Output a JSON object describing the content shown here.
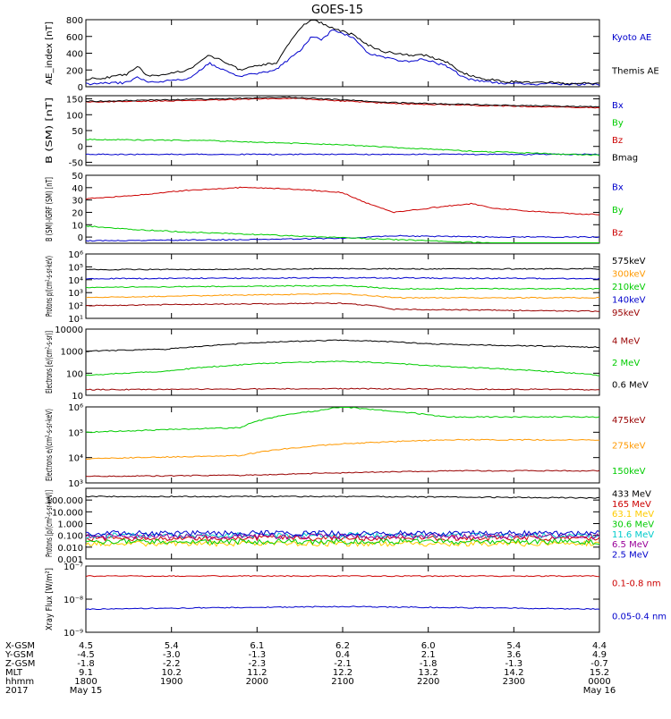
{
  "title": "GOES-15",
  "chart_data": [
    {
      "type": "line",
      "ylabel": "AE_index [nT]",
      "ylim": [
        0,
        800
      ],
      "y_ticks": [
        "0",
        "200",
        "400",
        "600",
        "800"
      ],
      "series": [
        {
          "name": "Kyoto AE",
          "color": "#0000cc",
          "x": [
            0,
            0.04,
            0.08,
            0.1,
            0.12,
            0.15,
            0.2,
            0.24,
            0.27,
            0.3,
            0.34,
            0.37,
            0.4,
            0.42,
            0.44,
            0.46,
            0.48,
            0.5,
            0.52,
            0.55,
            0.58,
            0.62,
            0.66,
            0.7,
            0.74,
            0.78,
            0.82,
            0.86,
            0.9,
            0.95,
            1.0
          ],
          "y": [
            30,
            40,
            50,
            120,
            50,
            60,
            100,
            280,
            200,
            120,
            170,
            200,
            350,
            450,
            600,
            560,
            680,
            640,
            580,
            400,
            350,
            300,
            330,
            250,
            100,
            60,
            40,
            30,
            40,
            30,
            30
          ]
        },
        {
          "name": "Themis AE",
          "color": "#000000",
          "x": [
            0,
            0.04,
            0.08,
            0.1,
            0.12,
            0.15,
            0.2,
            0.24,
            0.27,
            0.3,
            0.34,
            0.37,
            0.4,
            0.42,
            0.44,
            0.46,
            0.48,
            0.5,
            0.52,
            0.55,
            0.58,
            0.62,
            0.66,
            0.7,
            0.74,
            0.78,
            0.82,
            0.86,
            0.9,
            0.95,
            1.0
          ],
          "y": [
            90,
            110,
            150,
            250,
            130,
            140,
            200,
            380,
            300,
            200,
            260,
            280,
            560,
            720,
            800,
            760,
            700,
            660,
            620,
            500,
            420,
            380,
            380,
            300,
            150,
            90,
            60,
            50,
            50,
            40,
            40
          ]
        }
      ]
    },
    {
      "type": "line",
      "ylabel": "B (SM) [nT]",
      "ylim": [
        -60,
        160
      ],
      "y_ticks": [
        "-50",
        "0",
        "50",
        "100",
        "150"
      ],
      "series": [
        {
          "name": "Bx",
          "color": "#0000cc",
          "x": [
            0,
            0.5,
            1.0
          ],
          "y": [
            -25,
            -25,
            -25
          ]
        },
        {
          "name": "By",
          "color": "#00cc00",
          "x": [
            0,
            0.25,
            0.5,
            0.75,
            1.0
          ],
          "y": [
            22,
            18,
            5,
            -15,
            -28
          ]
        },
        {
          "name": "Bz",
          "color": "#cc0000",
          "x": [
            0,
            0.2,
            0.4,
            0.6,
            0.8,
            1.0
          ],
          "y": [
            140,
            145,
            152,
            135,
            128,
            122
          ]
        },
        {
          "name": "Bmag",
          "color": "#000000",
          "x": [
            0,
            0.2,
            0.4,
            0.6,
            0.8,
            1.0
          ],
          "y": [
            142,
            148,
            155,
            138,
            130,
            125
          ]
        }
      ]
    },
    {
      "type": "line",
      "ylabel": "B (SM)-IGRF (SM) [nT]",
      "ylim": [
        -5,
        50
      ],
      "y_ticks": [
        "0",
        "10",
        "20",
        "30",
        "40",
        "50"
      ],
      "series": [
        {
          "name": "Bx",
          "color": "#0000cc",
          "x": [
            0,
            0.3,
            0.5,
            0.6,
            0.8,
            1.0
          ],
          "y": [
            -3,
            -2,
            -1,
            1,
            0,
            0
          ]
        },
        {
          "name": "By",
          "color": "#00cc00",
          "x": [
            0,
            0.1,
            0.2,
            0.4,
            0.6,
            0.8,
            1.0
          ],
          "y": [
            9,
            6,
            4,
            1,
            -2,
            -5,
            -6
          ]
        },
        {
          "name": "Bz",
          "color": "#cc0000",
          "x": [
            0,
            0.1,
            0.2,
            0.3,
            0.4,
            0.5,
            0.55,
            0.6,
            0.7,
            0.75,
            0.8,
            0.9,
            1.0
          ],
          "y": [
            31,
            34,
            38,
            40,
            39,
            36,
            27,
            20,
            25,
            27,
            23,
            20,
            18
          ]
        }
      ]
    },
    {
      "type": "line",
      "ylabel": "Protons p/(cm²-s-sr-keV)",
      "yscale": "log",
      "ylim": [
        10,
        1000000
      ],
      "y_ticks": [
        "10¹",
        "10²",
        "10³",
        "10⁴",
        "10⁵",
        "10⁶"
      ],
      "series": [
        {
          "name": "575keV",
          "color": "#000000",
          "x": [
            0,
            0.5,
            1.0
          ],
          "y": [
            60000,
            70000,
            70000
          ]
        },
        {
          "name": "300keV",
          "color": "#ff9900",
          "x": [
            0,
            0.5,
            0.6,
            1.0
          ],
          "y": [
            400,
            800,
            400,
            400
          ]
        },
        {
          "name": "210keV",
          "color": "#00cc00",
          "x": [
            0,
            0.5,
            0.6,
            1.0
          ],
          "y": [
            2500,
            3500,
            2000,
            2000
          ]
        },
        {
          "name": "140keV",
          "color": "#0000cc",
          "x": [
            0,
            0.5,
            1.0
          ],
          "y": [
            12000,
            14000,
            12000
          ]
        },
        {
          "name": "95keV",
          "color": "#990000",
          "x": [
            0,
            0.5,
            0.6,
            1.0
          ],
          "y": [
            100,
            150,
            50,
            35
          ]
        }
      ]
    },
    {
      "type": "line",
      "ylabel": "Electrons [e/(cm²-s-sr)]",
      "yscale": "log",
      "ylim": [
        10,
        10000
      ],
      "y_ticks": [
        "10",
        "100",
        "1000",
        "10000"
      ],
      "series": [
        {
          "name": "4 MeV",
          "color": "#990000",
          "x": [
            0,
            0.5,
            1.0
          ],
          "y": [
            18,
            20,
            18
          ]
        },
        {
          "name": "2 MeV",
          "color": "#00cc00",
          "x": [
            0,
            0.15,
            0.35,
            0.5,
            0.7,
            1.0
          ],
          "y": [
            80,
            120,
            280,
            350,
            200,
            80
          ]
        },
        {
          "name": "0.6 MeV",
          "color": "#000000",
          "x": [
            0,
            0.15,
            0.35,
            0.5,
            0.7,
            1.0
          ],
          "y": [
            1000,
            1200,
            2500,
            3200,
            2000,
            1500
          ]
        }
      ]
    },
    {
      "type": "line",
      "ylabel": "Electrons e/(cm²-s-sr-keV)",
      "yscale": "log",
      "ylim": [
        1000,
        1000000
      ],
      "y_ticks": [
        "10³",
        "10⁴",
        "10⁵",
        "10⁶"
      ],
      "series": [
        {
          "name": "475keV",
          "color": "#990000",
          "x": [
            0,
            0.3,
            0.5,
            0.7,
            1.0
          ],
          "y": [
            1800,
            2000,
            2500,
            3000,
            3000
          ]
        },
        {
          "name": "275keV",
          "color": "#ff9900",
          "x": [
            0,
            0.3,
            0.5,
            0.7,
            1.0
          ],
          "y": [
            9000,
            12000,
            35000,
            50000,
            50000
          ]
        },
        {
          "name": "150keV",
          "color": "#00cc00",
          "x": [
            0,
            0.3,
            0.45,
            0.5,
            0.55,
            0.7,
            1.0
          ],
          "y": [
            100000,
            150000,
            700000,
            1000000,
            800000,
            400000,
            400000
          ]
        }
      ]
    },
    {
      "type": "line",
      "ylabel": "Protons [p/(cm²-s-sr-keV)]",
      "yscale": "log",
      "ylim": [
        0.001,
        1000
      ],
      "y_ticks": [
        "0.001",
        "0.010",
        "0.100",
        "1.000",
        "10.000",
        "100.000"
      ],
      "series": [
        {
          "name": "433 MeV",
          "color": "#000000",
          "x": [
            0,
            0.5,
            1.0
          ],
          "y": [
            200,
            200,
            150
          ]
        },
        {
          "name": "165 MeV",
          "color": "#cc0000",
          "x": [
            0,
            0.5,
            1.0
          ],
          "y": [
            0.06,
            0.06,
            0.06
          ]
        },
        {
          "name": "63.1 MeV",
          "color": "#ffcc00",
          "x": [
            0,
            0.5,
            1.0
          ],
          "y": [
            0.02,
            0.02,
            0.02
          ]
        },
        {
          "name": "30.6 MeV",
          "color": "#00cc00",
          "x": [
            0,
            0.5,
            1.0
          ],
          "y": [
            0.03,
            0.03,
            0.03
          ]
        },
        {
          "name": "11.6 MeV",
          "color": "#00cccc",
          "x": [
            0,
            0.5,
            1.0
          ],
          "y": [
            0.1,
            0.1,
            0.1
          ]
        },
        {
          "name": "6.5 MeV",
          "color": "#990099",
          "x": [
            0,
            0.5,
            1.0
          ],
          "y": [
            0.08,
            0.08,
            0.08
          ]
        },
        {
          "name": "2.5 MeV",
          "color": "#0000cc",
          "x": [
            0,
            0.5,
            1.0
          ],
          "y": [
            0.15,
            0.15,
            0.15
          ]
        }
      ]
    },
    {
      "type": "line",
      "ylabel": "Xray Flux [W/m²]",
      "yscale": "log",
      "ylim": [
        1e-09,
        1e-07
      ],
      "y_ticks": [
        "10⁻⁹",
        "10⁻⁸",
        "10⁻⁷"
      ],
      "series": [
        {
          "name": "0.1-0.8 nm",
          "color": "#cc0000",
          "x": [
            0,
            0.5,
            1.0
          ],
          "y": [
            5e-08,
            5e-08,
            5e-08
          ]
        },
        {
          "name": "0.05-0.4 nm",
          "color": "#0000cc",
          "x": [
            0,
            0.5,
            1.0
          ],
          "y": [
            5e-09,
            6e-09,
            5e-09
          ]
        }
      ]
    }
  ],
  "x_axis": {
    "tick_values": [
      0,
      0.1667,
      0.3333,
      0.5,
      0.6667,
      0.8333,
      1.0
    ],
    "row_labels": [
      "X-GSM",
      "Y-GSM",
      "Z-GSM",
      "MLT",
      "hhmm",
      "2017"
    ],
    "rows": [
      [
        "4.5",
        "5.4",
        "6.1",
        "6.2",
        "6.0",
        "5.4",
        "4.4"
      ],
      [
        "-4.5",
        "-3.0",
        "-1.3",
        "0.4",
        "2.1",
        "3.6",
        "4.9"
      ],
      [
        "-1.8",
        "-2.2",
        "-2.3",
        "-2.1",
        "-1.8",
        "-1.3",
        "-0.7"
      ],
      [
        "9.1",
        "10.2",
        "11.2",
        "12.2",
        "13.2",
        "14.2",
        "15.2"
      ],
      [
        "1800",
        "1900",
        "2000",
        "2100",
        "2200",
        "2300",
        "0000"
      ],
      [
        "May 15",
        "",
        "",
        "",
        "",
        "",
        "May 16"
      ]
    ]
  }
}
